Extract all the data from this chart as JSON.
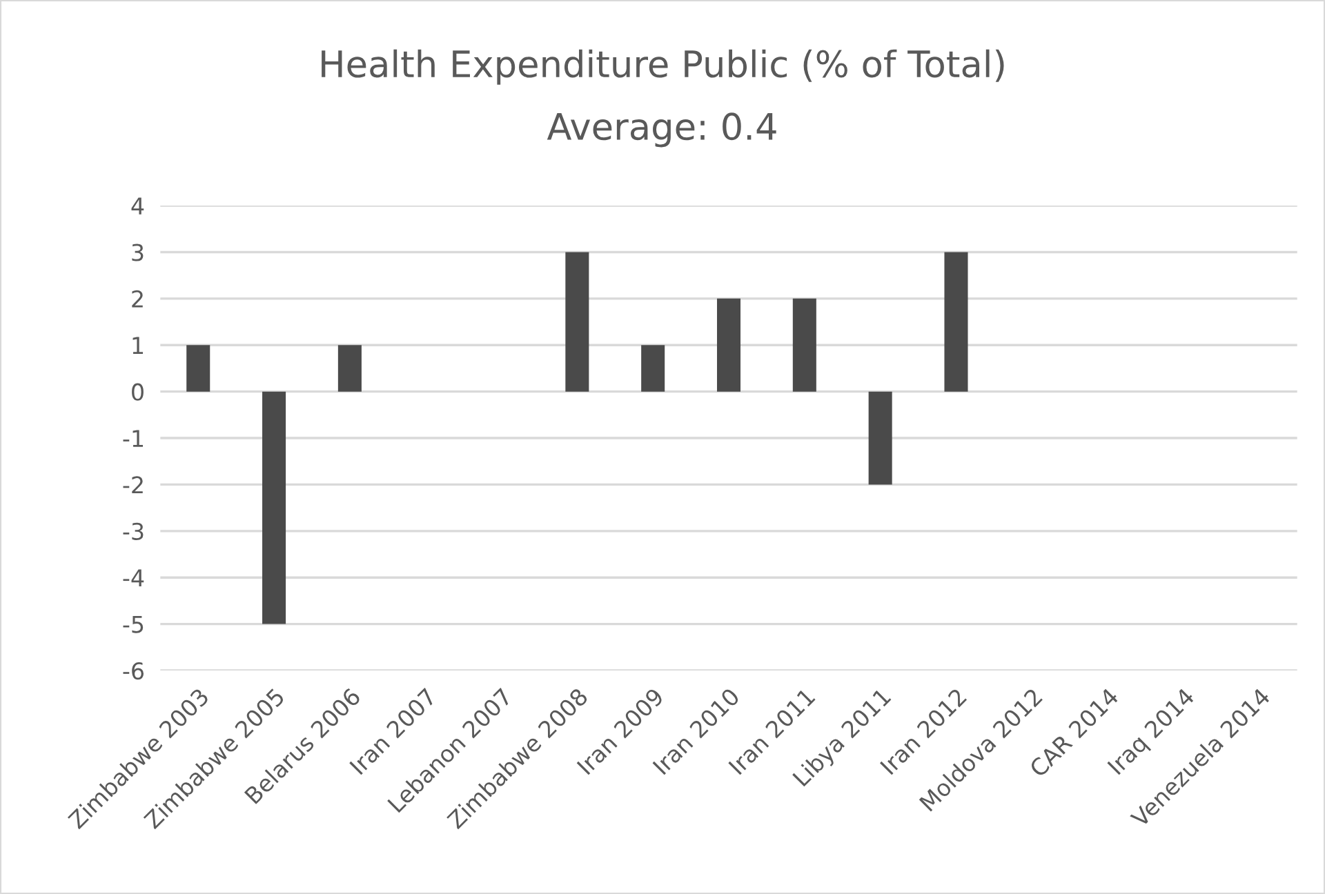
{
  "chart_data": {
    "type": "bar",
    "title": "Health Expenditure Public (% of Total)",
    "subtitle": "Average: 0.4",
    "categories": [
      "Zimbabwe 2003",
      "Zimbabwe 2005",
      "Belarus 2006",
      "Iran 2007",
      "Lebanon 2007",
      "Zimbabwe 2008",
      "Iran 2009",
      "Iran 2010",
      "Iran 2011",
      "Libya 2011",
      "Iran 2012",
      "Moldova 2012",
      "CAR 2014",
      "Iraq 2014",
      "Venezuela 2014"
    ],
    "values": [
      1,
      -5,
      1,
      0,
      0,
      3,
      1,
      2,
      2,
      -2,
      3,
      0,
      0,
      0,
      0
    ],
    "color": "#4a4a4a",
    "ylim": [
      -6,
      4
    ],
    "yticks": [
      -6,
      -5,
      -4,
      -3,
      -2,
      -1,
      0,
      1,
      2,
      3,
      4
    ],
    "grid": "y",
    "legend": false
  }
}
